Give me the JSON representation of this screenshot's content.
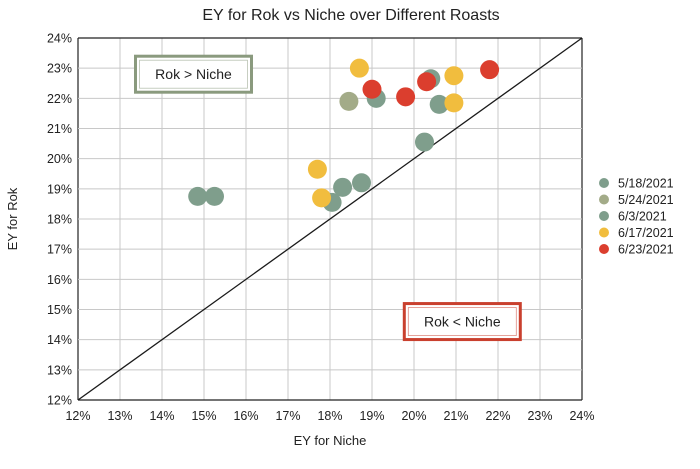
{
  "chart_data": {
    "type": "scatter",
    "title": "EY for Rok vs Niche over Different Roasts",
    "xlabel": "EY for Niche",
    "ylabel": "EY for Rok",
    "xlim": [
      12,
      24
    ],
    "ylim": [
      12,
      24
    ],
    "x_ticks": [
      12,
      13,
      14,
      15,
      16,
      17,
      18,
      19,
      20,
      21,
      22,
      23,
      24
    ],
    "y_ticks": [
      12,
      13,
      14,
      15,
      16,
      17,
      18,
      19,
      20,
      21,
      22,
      23,
      24
    ],
    "tick_suffix": "%",
    "grid": true,
    "legend_position": "right",
    "reference_line": {
      "from": [
        12,
        12
      ],
      "to": [
        24,
        24
      ],
      "color": "#1a1a1a"
    },
    "series": [
      {
        "name": "5/18/2021",
        "color": "#7f9e8c",
        "points": [
          [
            14.85,
            18.75
          ],
          [
            15.25,
            18.75
          ]
        ]
      },
      {
        "name": "5/24/2021",
        "color": "#a3ab88",
        "points": [
          [
            18.45,
            21.9
          ]
        ]
      },
      {
        "name": "6/3/2021",
        "color": "#7f9e8c",
        "points": [
          [
            18.3,
            19.05
          ],
          [
            18.05,
            18.55
          ],
          [
            18.75,
            19.2
          ],
          [
            19.1,
            22.0
          ],
          [
            20.25,
            20.55
          ],
          [
            20.4,
            22.65
          ],
          [
            20.6,
            21.8
          ]
        ]
      },
      {
        "name": "6/17/2021",
        "color": "#f1bd3e",
        "points": [
          [
            17.7,
            19.65
          ],
          [
            17.8,
            18.7
          ],
          [
            18.7,
            23.0
          ],
          [
            20.95,
            22.75
          ],
          [
            20.95,
            21.85
          ]
        ]
      },
      {
        "name": "6/23/2021",
        "color": "#db3e2e",
        "points": [
          [
            19.0,
            22.3
          ],
          [
            19.8,
            22.05
          ],
          [
            20.3,
            22.55
          ],
          [
            21.8,
            22.95
          ]
        ]
      }
    ],
    "annotations": [
      {
        "text": "Rok > Niche",
        "x": 14.75,
        "y": 22.8,
        "border_color": "#8a9a7e"
      },
      {
        "text": "Rok < Niche",
        "x": 21.15,
        "y": 14.6,
        "border_color": "#c9402e"
      }
    ]
  }
}
